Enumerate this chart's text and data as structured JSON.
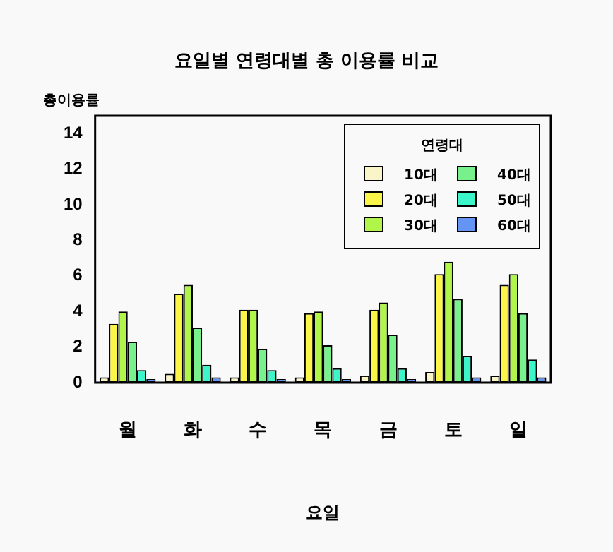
{
  "chart_data": {
    "type": "bar",
    "title": "요일별 연령대별 총 이용률 비교",
    "xlabel": "요일",
    "ylabel": "총이용률",
    "legend_title": "연령대",
    "categories": [
      "월",
      "화",
      "수",
      "목",
      "금",
      "토",
      "일"
    ],
    "series": [
      {
        "name": "10대",
        "color": "#faf5c8",
        "values": [
          0.3,
          0.5,
          0.3,
          0.3,
          0.4,
          0.6,
          0.4
        ]
      },
      {
        "name": "20대",
        "color": "#fbf54a",
        "values": [
          3.3,
          5.0,
          4.1,
          3.9,
          4.1,
          6.1,
          5.5
        ]
      },
      {
        "name": "30대",
        "color": "#b0f54a",
        "values": [
          4.0,
          5.5,
          4.1,
          4.0,
          4.5,
          6.8,
          6.1
        ]
      },
      {
        "name": "40대",
        "color": "#78f08c",
        "values": [
          2.3,
          3.1,
          1.9,
          2.1,
          2.7,
          4.7,
          3.9
        ]
      },
      {
        "name": "50대",
        "color": "#3cf5c8",
        "values": [
          0.7,
          1.0,
          0.7,
          0.8,
          0.8,
          1.5,
          1.3
        ]
      },
      {
        "name": "60대",
        "color": "#6495f5",
        "values": [
          0.2,
          0.3,
          0.2,
          0.2,
          0.2,
          0.3,
          0.3
        ]
      }
    ],
    "ylim": [
      0,
      15
    ],
    "yticks": [
      0,
      2,
      4,
      6,
      8,
      10,
      12,
      14
    ],
    "grid": false,
    "legend": "top right"
  }
}
